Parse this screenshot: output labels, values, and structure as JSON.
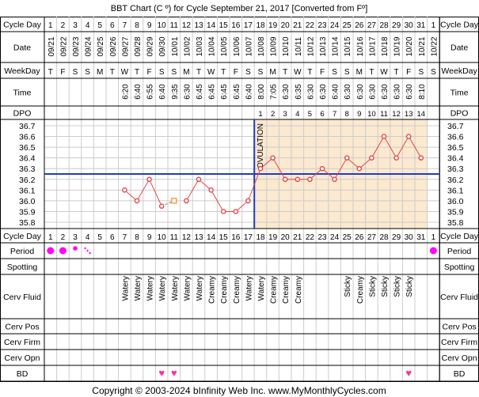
{
  "title": "BBT Chart (C º) for Cycle September 21, 2017  [Converted from Fº]",
  "footer": "Copyright © 2003-2024 bInfinity Web Inc.    www.MyMonthlyCycles.com",
  "row_labels": {
    "cycle_day": "Cycle Day",
    "date": "Date",
    "weekday": "WeekDay",
    "time": "Time",
    "dpo": "DPO",
    "period": "Period",
    "spotting": "Spotting",
    "cerv_fluid": "Cerv Fluid",
    "cerv_pos": "Cerv Pos",
    "cerv_firm": "Cerv Firm",
    "cerv_opn": "Cerv Opn",
    "bd": "BD"
  },
  "colors": {
    "temp_line": "#e0474c",
    "coverline": "#1f3cbf",
    "ovulation_line": "#1f3cbf",
    "luteal_fill": "#fbe9d0",
    "grid": "#cccccc",
    "period_dot": "#ff00ff",
    "heart": "#ff2fa0",
    "manual_marker": "#f59a3b"
  },
  "ovulation_label": "OVULATION",
  "days": [
    {
      "day": "1",
      "date": "09/21",
      "wd": "T",
      "time": "",
      "dpo": "",
      "fluid": "",
      "period": "heavy",
      "bd": false
    },
    {
      "day": "2",
      "date": "09/22",
      "wd": "F",
      "time": "",
      "dpo": "",
      "fluid": "",
      "period": "heavy",
      "bd": false
    },
    {
      "day": "3",
      "date": "09/23",
      "wd": "S",
      "time": "",
      "dpo": "",
      "fluid": "",
      "period": "medium",
      "bd": false
    },
    {
      "day": "4",
      "date": "09/24",
      "wd": "S",
      "time": "",
      "dpo": "",
      "fluid": "",
      "period": "spotting",
      "bd": false
    },
    {
      "day": "5",
      "date": "09/25",
      "wd": "M",
      "time": "",
      "dpo": "",
      "fluid": "",
      "period": "",
      "bd": false
    },
    {
      "day": "6",
      "date": "09/26",
      "wd": "T",
      "time": "",
      "dpo": "",
      "fluid": "",
      "period": "",
      "bd": false
    },
    {
      "day": "7",
      "date": "09/27",
      "wd": "W",
      "time": "6:20",
      "dpo": "",
      "fluid": "Watery",
      "period": "",
      "bd": false
    },
    {
      "day": "8",
      "date": "09/28",
      "wd": "T",
      "time": "6:40",
      "dpo": "",
      "fluid": "Watery",
      "period": "",
      "bd": false
    },
    {
      "day": "9",
      "date": "09/29",
      "wd": "F",
      "time": "6:55",
      "dpo": "",
      "fluid": "Watery",
      "period": "",
      "bd": false
    },
    {
      "day": "10",
      "date": "09/30",
      "wd": "S",
      "time": "6:40",
      "dpo": "",
      "fluid": "Watery",
      "period": "",
      "bd": true
    },
    {
      "day": "11",
      "date": "10/01",
      "wd": "S",
      "time": "9:35",
      "dpo": "",
      "fluid": "Watery",
      "period": "",
      "bd": true
    },
    {
      "day": "12",
      "date": "10/02",
      "wd": "M",
      "time": "6:30",
      "dpo": "",
      "fluid": "Watery",
      "period": "",
      "bd": false
    },
    {
      "day": "13",
      "date": "10/03",
      "wd": "T",
      "time": "6:45",
      "dpo": "",
      "fluid": "Watery",
      "period": "",
      "bd": false
    },
    {
      "day": "14",
      "date": "10/04",
      "wd": "W",
      "time": "6:45",
      "dpo": "",
      "fluid": "Creamy",
      "period": "",
      "bd": false
    },
    {
      "day": "15",
      "date": "10/05",
      "wd": "T",
      "time": "6:45",
      "dpo": "",
      "fluid": "Creamy",
      "period": "",
      "bd": false
    },
    {
      "day": "16",
      "date": "10/06",
      "wd": "F",
      "time": "6:45",
      "dpo": "",
      "fluid": "Creamy",
      "period": "",
      "bd": false
    },
    {
      "day": "17",
      "date": "10/07",
      "wd": "S",
      "time": "6:40",
      "dpo": "",
      "fluid": "Watery",
      "period": "",
      "bd": false
    },
    {
      "day": "18",
      "date": "10/08",
      "wd": "S",
      "time": "8:00",
      "dpo": "1",
      "fluid": "Watery",
      "period": "",
      "bd": false
    },
    {
      "day": "19",
      "date": "10/09",
      "wd": "M",
      "time": "7:05",
      "dpo": "2",
      "fluid": "Creamy",
      "period": "",
      "bd": false
    },
    {
      "day": "20",
      "date": "10/10",
      "wd": "T",
      "time": "6:30",
      "dpo": "3",
      "fluid": "Creamy",
      "period": "",
      "bd": false
    },
    {
      "day": "21",
      "date": "10/11",
      "wd": "W",
      "time": "6:35",
      "dpo": "4",
      "fluid": "Creamy",
      "period": "",
      "bd": false
    },
    {
      "day": "22",
      "date": "10/12",
      "wd": "T",
      "time": "6:30",
      "dpo": "5",
      "fluid": "",
      "period": "",
      "bd": false
    },
    {
      "day": "23",
      "date": "10/13",
      "wd": "F",
      "time": "6:30",
      "dpo": "6",
      "fluid": "",
      "period": "",
      "bd": false
    },
    {
      "day": "24",
      "date": "10/14",
      "wd": "S",
      "time": "6:40",
      "dpo": "7",
      "fluid": "",
      "period": "",
      "bd": false
    },
    {
      "day": "25",
      "date": "10/15",
      "wd": "S",
      "time": "6:30",
      "dpo": "8",
      "fluid": "Sticky",
      "period": "",
      "bd": false
    },
    {
      "day": "26",
      "date": "10/16",
      "wd": "M",
      "time": "6:30",
      "dpo": "9",
      "fluid": "Creamy",
      "period": "",
      "bd": false
    },
    {
      "day": "27",
      "date": "10/17",
      "wd": "T",
      "time": "6:30",
      "dpo": "10",
      "fluid": "Sticky",
      "period": "",
      "bd": false
    },
    {
      "day": "28",
      "date": "10/18",
      "wd": "W",
      "time": "6:30",
      "dpo": "11",
      "fluid": "Sticky",
      "period": "",
      "bd": false
    },
    {
      "day": "29",
      "date": "10/19",
      "wd": "T",
      "time": "6:30",
      "dpo": "12",
      "fluid": "Sticky",
      "period": "",
      "bd": false
    },
    {
      "day": "30",
      "date": "10/20",
      "wd": "F",
      "time": "6:30",
      "dpo": "13",
      "fluid": "Sticky",
      "period": "",
      "bd": true
    },
    {
      "day": "31",
      "date": "10/21",
      "wd": "S",
      "time": "8:10",
      "dpo": "14",
      "fluid": "",
      "period": "",
      "bd": false
    },
    {
      "day": "1",
      "date": "10/22",
      "wd": "S",
      "time": "",
      "dpo": "",
      "fluid": "",
      "period": "heavy",
      "bd": false
    }
  ],
  "chart_data": {
    "type": "line",
    "title": "BBT Chart (C º) for Cycle September 21, 2017  [Converted from Fº]",
    "x_label": "Cycle Day",
    "y_ticks": [
      "35.8",
      "35.9",
      "36.0",
      "36.1",
      "36.2",
      "36.3",
      "36.4",
      "36.5",
      "36.6",
      "36.7"
    ],
    "ylim": [
      35.8,
      36.7
    ],
    "x": [
      7,
      8,
      9,
      10,
      11,
      12,
      13,
      14,
      15,
      16,
      17,
      18,
      19,
      20,
      21,
      22,
      23,
      24,
      25,
      26,
      27,
      28,
      29,
      30,
      31
    ],
    "temps": [
      36.1,
      36.0,
      36.2,
      35.95,
      36.0,
      36.0,
      36.2,
      36.1,
      35.9,
      35.9,
      36.0,
      36.3,
      36.4,
      36.2,
      36.2,
      36.2,
      36.3,
      36.2,
      36.4,
      36.3,
      36.4,
      36.6,
      36.4,
      36.6,
      36.4
    ],
    "manual_point": {
      "day": 11,
      "temp": 36.0
    },
    "segments": [
      [
        7,
        10
      ],
      [
        12,
        31
      ]
    ],
    "dashed_segment": [
      10,
      11
    ],
    "coverline": 36.25,
    "ovulation_day": 17,
    "luteal_phase": [
      18,
      31
    ],
    "grid": true
  }
}
